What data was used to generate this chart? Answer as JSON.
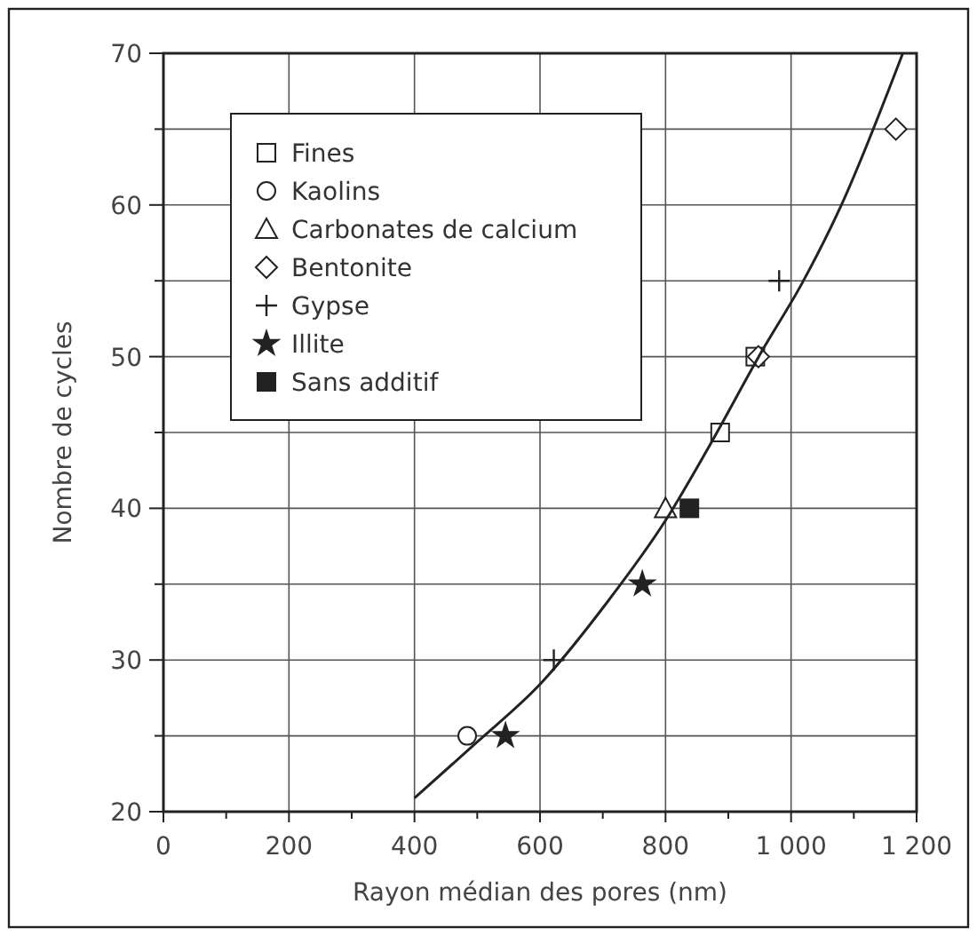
{
  "chart_data": {
    "type": "scatter",
    "xlabel": "Rayon médian des pores (nm)",
    "ylabel": "Nombre de cycles",
    "xlim": [
      0,
      1200
    ],
    "ylim": [
      20,
      70
    ],
    "xticks": [
      0,
      {
        "value": 100,
        "label": null
      },
      200,
      {
        "value": 300,
        "label": null
      },
      400,
      {
        "value": 500,
        "label": null
      },
      600,
      {
        "value": 700,
        "label": null
      },
      800,
      {
        "value": 900,
        "label": null
      },
      {
        "value": 1000,
        "label": "1 000"
      },
      {
        "value": 1100,
        "label": null
      },
      {
        "value": 1200,
        "label": "1 200"
      }
    ],
    "yticks": [
      20,
      {
        "value": 25,
        "label": null
      },
      30,
      {
        "value": 35,
        "label": null
      },
      40,
      {
        "value": 45,
        "label": null
      },
      50,
      {
        "value": 55,
        "label": null
      },
      60,
      {
        "value": 65,
        "label": null
      },
      70
    ],
    "grid": true,
    "legend": "top left",
    "series": [
      {
        "name": "Fines",
        "color": "#ffffff",
        "marker": "square",
        "x": [
          887,
          943
        ],
        "values": [
          45,
          50
        ]
      },
      {
        "name": "Kaolins",
        "color": "#ffffff",
        "marker": "circle",
        "x": [
          484
        ],
        "values": [
          25
        ]
      },
      {
        "name": "Carbonates de calcium",
        "color": "#ffffff",
        "marker": "triangle",
        "x": [
          800
        ],
        "values": [
          40
        ]
      },
      {
        "name": "Bentonite",
        "color": "#ffffff",
        "marker": "diamond",
        "x": [
          948,
          1167
        ],
        "values": [
          50,
          65
        ]
      },
      {
        "name": "Gypse",
        "color": "#222222",
        "marker": "cross",
        "x": [
          622,
          981
        ],
        "values": [
          30,
          55
        ]
      },
      {
        "name": "Illite",
        "color": "#222222",
        "marker": "star",
        "x": [
          545,
          763
        ],
        "values": [
          25,
          35
        ]
      },
      {
        "name": "Sans additif",
        "color": "#222222",
        "marker": "square",
        "x": [
          838
        ],
        "values": [
          40
        ]
      },
      {
        "type": "line",
        "color": "#222222",
        "marker": "none",
        "x": [
          400,
          500,
          600,
          705,
          800,
          871,
          954,
          1017,
          1078,
          1178
        ],
        "values": [
          20.9,
          24.6,
          28.4,
          33.7,
          39.2,
          44.2,
          50.4,
          54.8,
          59.8,
          70
        ]
      }
    ]
  }
}
